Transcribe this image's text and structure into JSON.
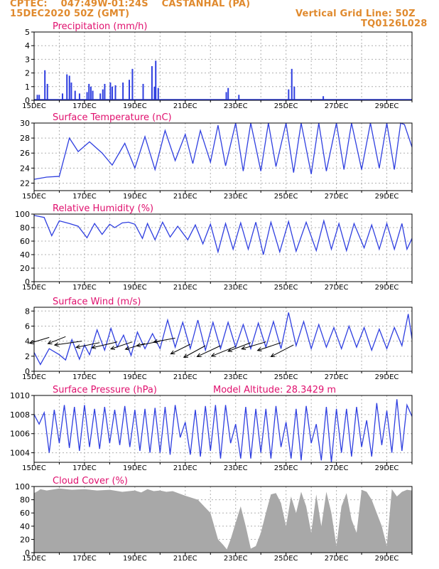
{
  "header": {
    "left_line1": "CPTEC:    047:49W-01:24S    CASTANHAL (PA)",
    "left_line2": "15DEC2020 50Z (GMT)",
    "right_line1": "Vertical Grid Line: 50Z",
    "right_line2": "TQ0126L028"
  },
  "colors": {
    "header": "#e08a2e",
    "panel_title": "#e0106e",
    "bar_fill": "#2f3fe0",
    "line": "#2f3fe0",
    "cloud_fill": "#a8a8a8",
    "arrow": "#000000",
    "grid": "#b0b0b0"
  },
  "chart_data": [
    {
      "type": "bar",
      "title": "Precipitation (mm/h)",
      "x_ticks": [
        "15DEC",
        "17DEC",
        "19DEC",
        "21DEC",
        "23DEC",
        "25DEC",
        "27DEC",
        "29DEC"
      ],
      "ylim": [
        0,
        5
      ],
      "yticks": [
        0,
        1,
        2,
        3,
        4,
        5
      ],
      "grid": true,
      "bars": [
        [
          0.2,
          0.4
        ],
        [
          0.35,
          0.4
        ],
        [
          0.8,
          2.2
        ],
        [
          1.0,
          1.2
        ],
        [
          2.2,
          0.5
        ],
        [
          2.55,
          1.9
        ],
        [
          2.75,
          1.8
        ],
        [
          2.9,
          1.3
        ],
        [
          3.2,
          0.7
        ],
        [
          3.55,
          0.5
        ],
        [
          4.15,
          0.6
        ],
        [
          4.3,
          1.2
        ],
        [
          4.45,
          1.0
        ],
        [
          4.6,
          0.7
        ],
        [
          5.2,
          0.5
        ],
        [
          5.4,
          0.8
        ],
        [
          5.55,
          1.2
        ],
        [
          6.0,
          1.3
        ],
        [
          6.15,
          1.0
        ],
        [
          6.4,
          1.1
        ],
        [
          7.0,
          1.3
        ],
        [
          7.5,
          1.5
        ],
        [
          7.75,
          2.3
        ],
        [
          8.6,
          1.2
        ],
        [
          9.3,
          2.5
        ],
        [
          9.5,
          1.0
        ],
        [
          9.6,
          2.9
        ],
        [
          9.8,
          0.9
        ],
        [
          15.2,
          0.6
        ],
        [
          15.35,
          0.9
        ],
        [
          16.2,
          0.4
        ],
        [
          20.15,
          0.8
        ],
        [
          20.4,
          2.3
        ],
        [
          20.6,
          1.0
        ],
        [
          22.9,
          0.3
        ]
      ],
      "baseline": 0.05
    },
    {
      "type": "line",
      "title": "Surface Temperature (nC)",
      "x_ticks": [
        "15DEC",
        "17DEC",
        "19DEC",
        "21DEC",
        "23DEC",
        "25DEC",
        "27DEC",
        "29DEC"
      ],
      "ylim": [
        21,
        30
      ],
      "yticks": [
        22,
        24,
        26,
        28,
        30
      ],
      "grid": true,
      "series": [
        {
          "x": [
            0,
            1,
            2,
            2.8,
            3.5,
            4.4,
            5.4,
            6.2,
            7.2,
            8.0,
            8.8,
            9.6,
            10.4,
            11.2,
            12.0,
            12.6,
            13.2,
            14.0,
            14.6,
            15.2,
            16.0,
            16.6,
            17.2,
            18.0,
            18.6,
            19.2,
            20.0,
            20.6,
            21.2,
            22.0,
            22.6,
            23.2,
            24.0,
            24.6,
            25.2,
            26.0,
            26.7,
            27.4,
            28.0,
            28.6,
            29.1,
            29.4,
            30
          ],
          "y": [
            22.5,
            22.8,
            22.9,
            28.0,
            26.2,
            27.5,
            26.0,
            24.4,
            27.3,
            24.0,
            28.2,
            23.8,
            29.0,
            25.0,
            28.5,
            24.6,
            29.0,
            24.8,
            29.7,
            24.3,
            30.0,
            23.6,
            30.0,
            23.6,
            30.0,
            24.2,
            30.0,
            23.4,
            30.0,
            23.2,
            30.0,
            23.6,
            30.0,
            23.8,
            30.0,
            23.8,
            30.0,
            24.0,
            30.0,
            23.8,
            30.0,
            29.8,
            26.8
          ]
        }
      ]
    },
    {
      "type": "line",
      "title": "Relative Humidity (%)",
      "x_ticks": [
        "15DEC",
        "17DEC",
        "19DEC",
        "21DEC",
        "23DEC",
        "25DEC",
        "27DEC",
        "29DEC"
      ],
      "ylim": [
        0,
        100
      ],
      "yticks": [
        0,
        20,
        40,
        60,
        80,
        100
      ],
      "grid": true,
      "series": [
        {
          "x": [
            0,
            0.8,
            1.4,
            2.0,
            2.8,
            3.5,
            4.2,
            4.8,
            5.4,
            6.0,
            6.4,
            7.0,
            7.5,
            8.0,
            8.6,
            9.0,
            9.6,
            10.2,
            10.8,
            11.4,
            12.2,
            12.8,
            13.4,
            14.0,
            14.6,
            15.2,
            15.8,
            16.4,
            17.0,
            17.6,
            18.2,
            18.8,
            19.5,
            20.2,
            20.8,
            21.6,
            22.4,
            23.0,
            23.6,
            24.2,
            24.8,
            25.4,
            26.2,
            26.8,
            27.4,
            28.0,
            28.6,
            29.2,
            29.6,
            30
          ],
          "y": [
            98,
            95,
            68,
            90,
            86,
            82,
            65,
            86,
            70,
            85,
            80,
            87,
            88,
            85,
            64,
            86,
            62,
            88,
            66,
            82,
            62,
            84,
            56,
            85,
            44,
            86,
            48,
            87,
            48,
            88,
            40,
            88,
            44,
            89,
            45,
            88,
            46,
            90,
            48,
            86,
            46,
            86,
            50,
            84,
            48,
            86,
            48,
            86,
            48,
            64
          ]
        }
      ]
    },
    {
      "type": "line",
      "title": "Surface Wind (m/s)",
      "x_ticks": [
        "15DEC",
        "17DEC",
        "19DEC",
        "21DEC",
        "23DEC",
        "25DEC",
        "27DEC",
        "29DEC"
      ],
      "ylim": [
        0,
        8.5
      ],
      "yticks": [
        0,
        2,
        4,
        6,
        8
      ],
      "grid": true,
      "series": [
        {
          "x": [
            0,
            0.5,
            1.2,
            2.0,
            2.5,
            3.0,
            3.6,
            4.0,
            4.4,
            5.0,
            5.6,
            6.1,
            6.6,
            7.1,
            7.7,
            8.2,
            8.8,
            9.4,
            10.0,
            10.6,
            11.2,
            11.8,
            12.4,
            13.0,
            13.6,
            14.2,
            14.8,
            15.4,
            16.0,
            16.6,
            17.2,
            17.8,
            18.4,
            19.0,
            19.6,
            20.2,
            20.8,
            21.4,
            22.0,
            22.6,
            23.2,
            23.8,
            24.4,
            25.0,
            25.6,
            26.2,
            26.8,
            27.4,
            28.0,
            28.6,
            29.2,
            29.7,
            30
          ],
          "y": [
            2.5,
            0.9,
            3.0,
            2.2,
            1.5,
            4.2,
            1.6,
            3.5,
            2.2,
            5.5,
            2.8,
            5.7,
            3.2,
            4.8,
            2.1,
            5.2,
            3.0,
            5.0,
            3.0,
            6.8,
            3.2,
            6.5,
            3.0,
            6.8,
            2.8,
            6.5,
            3.0,
            6.5,
            3.2,
            6.2,
            3.0,
            6.4,
            3.2,
            6.6,
            3.0,
            7.8,
            3.4,
            6.6,
            3.0,
            6.2,
            3.2,
            5.8,
            3.0,
            6.0,
            3.2,
            5.8,
            2.8,
            5.6,
            3.0,
            5.8,
            3.4,
            7.6,
            4.3
          ]
        }
      ],
      "arrows": [
        [
          1.2,
          4.5,
          -50,
          -15
        ],
        [
          2.5,
          4.6,
          -45,
          -18
        ],
        [
          3.8,
          4.0,
          -70,
          -10
        ],
        [
          5.2,
          3.8,
          -60,
          -12
        ],
        [
          6.6,
          3.9,
          -65,
          -15
        ],
        [
          7.8,
          3.9,
          -55,
          -18
        ],
        [
          8.8,
          3.7,
          -50,
          -15
        ],
        [
          10.0,
          4.0,
          -60,
          -12
        ],
        [
          11.2,
          4.4,
          -55,
          -10
        ],
        [
          12.4,
          3.6,
          -50,
          -25
        ],
        [
          13.6,
          3.4,
          -55,
          -30
        ],
        [
          14.8,
          3.4,
          -60,
          -28
        ],
        [
          16.0,
          3.3,
          -62,
          -25
        ],
        [
          17.2,
          3.8,
          -58,
          -22
        ],
        [
          18.4,
          3.9,
          -62,
          -18
        ],
        [
          19.6,
          3.8,
          -60,
          -20
        ],
        [
          20.6,
          3.5,
          -58,
          -30
        ]
      ]
    },
    {
      "type": "line",
      "title": "Surface Pressure (hPa)",
      "annotation": "Model Altitude: 28.3429 m",
      "x_ticks": [
        "15DEC",
        "17DEC",
        "19DEC",
        "21DEC",
        "23DEC",
        "25DEC",
        "27DEC",
        "29DEC"
      ],
      "ylim": [
        1003,
        1010
      ],
      "yticks": [
        1004,
        1006,
        1008,
        1010
      ],
      "grid": true,
      "series": [
        {
          "x": [
            0,
            0.4,
            0.8,
            1.2,
            1.6,
            2.0,
            2.4,
            2.8,
            3.2,
            3.6,
            4.0,
            4.4,
            4.8,
            5.2,
            5.6,
            6.0,
            6.4,
            6.8,
            7.2,
            7.6,
            8.0,
            8.4,
            8.8,
            9.2,
            9.6,
            10.0,
            10.4,
            10.8,
            11.2,
            11.6,
            12.0,
            12.4,
            12.8,
            13.2,
            13.6,
            14.0,
            14.4,
            14.8,
            15.2,
            15.6,
            16.0,
            16.4,
            16.8,
            17.2,
            17.6,
            18.0,
            18.4,
            18.8,
            19.2,
            19.6,
            20.0,
            20.4,
            20.8,
            21.2,
            21.6,
            22.0,
            22.4,
            22.8,
            23.2,
            23.6,
            24.0,
            24.4,
            24.8,
            25.2,
            25.6,
            26.0,
            26.4,
            26.8,
            27.2,
            27.6,
            28.0,
            28.4,
            28.8,
            29.2,
            29.6,
            30
          ],
          "y": [
            1008,
            1007,
            1008.2,
            1004,
            1008.5,
            1005,
            1009,
            1004.5,
            1008.8,
            1004.2,
            1009,
            1004.6,
            1008.6,
            1004.4,
            1008.8,
            1005,
            1008.5,
            1004.8,
            1008.9,
            1004.6,
            1008.5,
            1004.2,
            1008.6,
            1004.0,
            1008.7,
            1004.0,
            1008.8,
            1003.8,
            1009.0,
            1005.6,
            1007.2,
            1003.8,
            1008.5,
            1003.6,
            1008.9,
            1004.2,
            1009.0,
            1003.4,
            1009.0,
            1005.0,
            1007.0,
            1003.4,
            1008.8,
            1003.4,
            1008.6,
            1004.0,
            1008.6,
            1003.4,
            1008.9,
            1004.6,
            1007.2,
            1003.4,
            1008.6,
            1003.2,
            1008.9,
            1005.0,
            1007.0,
            1003.2,
            1008.8,
            1003.0,
            1008.6,
            1004.0,
            1008.6,
            1003.6,
            1008.8,
            1004.6,
            1007.4,
            1003.6,
            1009.2,
            1004.8,
            1008.4,
            1004.0,
            1009.6,
            1004.2,
            1009.0,
            1007.8
          ]
        }
      ]
    },
    {
      "type": "area",
      "title": "Cloud Cover (%)",
      "x_ticks": [
        "15DEC",
        "17DEC",
        "19DEC",
        "21DEC",
        "23DEC",
        "25DEC",
        "27DEC",
        "29DEC"
      ],
      "ylim": [
        0,
        100
      ],
      "yticks": [
        0,
        20,
        40,
        60,
        80,
        100
      ],
      "grid": true,
      "series": [
        {
          "x": [
            0,
            0.3,
            0.5,
            1.0,
            2.0,
            3.0,
            4.0,
            5.0,
            6.0,
            7.0,
            8.0,
            8.5,
            9.0,
            9.5,
            10.0,
            10.5,
            11.0,
            12.0,
            13.0,
            14.0,
            14.3,
            14.6,
            15.0,
            15.3,
            15.6,
            16.0,
            16.4,
            16.8,
            17.2,
            17.6,
            18.0,
            18.4,
            18.8,
            19.2,
            19.6,
            20.0,
            20.4,
            20.8,
            21.2,
            21.6,
            22.0,
            22.4,
            22.8,
            23.2,
            23.6,
            24.0,
            24.4,
            24.8,
            25.2,
            25.6,
            26.0,
            26.4,
            26.8,
            27.2,
            27.6,
            28.0,
            28.4,
            28.8,
            29.2,
            29.6,
            30
          ],
          "y": [
            90,
            93,
            96,
            94,
            97,
            95,
            96,
            94,
            95,
            92,
            94,
            91,
            96,
            93,
            94,
            92,
            93,
            86,
            80,
            60,
            40,
            20,
            12,
            5,
            20,
            45,
            70,
            40,
            6,
            10,
            30,
            60,
            88,
            90,
            75,
            40,
            85,
            60,
            92,
            70,
            30,
            88,
            40,
            92,
            60,
            10,
            70,
            90,
            50,
            30,
            95,
            92,
            80,
            60,
            40,
            10,
            96,
            85,
            92,
            95,
            94
          ]
        }
      ]
    }
  ]
}
